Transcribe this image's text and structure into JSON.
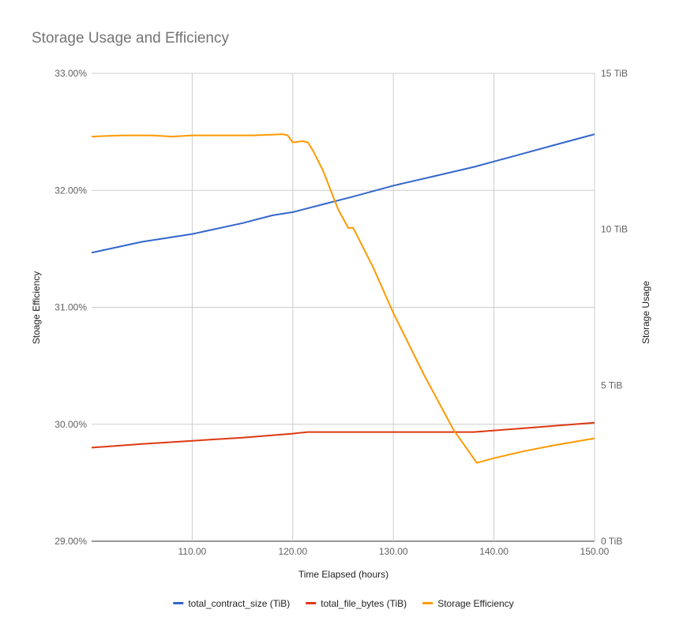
{
  "chart_data": {
    "type": "line",
    "title": "Storage Usage and Efficiency",
    "xlabel": "Time Elapsed (hours)",
    "ylabel_left": "Stoage Efficiency",
    "ylabel_right": "Storage Usage",
    "xlim": [
      100,
      150
    ],
    "ylim_left": [
      29,
      33
    ],
    "ylim_right": [
      0,
      15
    ],
    "x_ticks": [
      110,
      120,
      130,
      140,
      150
    ],
    "x_tick_labels": [
      "110.00",
      "120.00",
      "130.00",
      "140.00",
      "150.00"
    ],
    "y_left_ticks": [
      29,
      30,
      31,
      32,
      33
    ],
    "y_left_tick_labels": [
      "29.00%",
      "30.00%",
      "31.00%",
      "32.00%",
      "33.00%"
    ],
    "y_right_ticks": [
      0,
      5,
      10,
      15
    ],
    "y_right_tick_labels": [
      "0 TiB",
      "5 TiB",
      "10 TiB",
      "15 TiB"
    ],
    "grid": true,
    "legend_position": "bottom",
    "series": [
      {
        "name": "total_contract_size (TiB)",
        "axis": "right",
        "color": "#3366cc",
        "x": [
          100,
          105,
          110,
          115,
          118,
          120,
          123,
          126,
          130,
          134,
          138,
          142,
          146,
          150
        ],
        "y": [
          9.25,
          9.6,
          9.85,
          10.2,
          10.45,
          10.55,
          10.8,
          11.05,
          11.4,
          11.7,
          12.0,
          12.35,
          12.7,
          13.05
        ]
      },
      {
        "name": "total_file_bytes (TiB)",
        "axis": "right",
        "color": "#dc3912",
        "x": [
          100,
          105,
          110,
          115,
          120,
          121.5,
          126,
          130,
          135,
          138,
          142,
          146,
          150
        ],
        "y": [
          3.0,
          3.12,
          3.22,
          3.32,
          3.45,
          3.5,
          3.5,
          3.5,
          3.5,
          3.5,
          3.6,
          3.7,
          3.8
        ]
      },
      {
        "name": "Storage Efficiency",
        "axis": "left",
        "color": "#ff9900",
        "x": [
          100,
          103,
          106,
          108,
          110,
          113,
          116,
          119,
          119.5,
          120,
          121,
          121.5,
          122,
          123,
          124.5,
          125.5,
          126,
          128,
          130,
          133,
          136,
          138.3,
          140,
          143,
          146,
          148,
          150
        ],
        "y": [
          32.46,
          32.47,
          32.47,
          32.46,
          32.47,
          32.47,
          32.47,
          32.48,
          32.47,
          32.41,
          32.42,
          32.41,
          32.34,
          32.17,
          31.84,
          31.68,
          31.68,
          31.34,
          30.95,
          30.43,
          29.95,
          29.67,
          29.71,
          29.77,
          29.82,
          29.85,
          29.88
        ]
      }
    ]
  }
}
